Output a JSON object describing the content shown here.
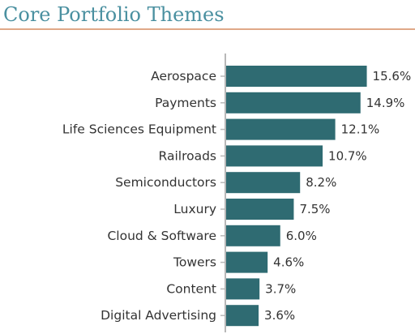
{
  "colors": {
    "title": "#4a90a0",
    "rule": "#e0a888",
    "bar": "#2f6b72",
    "axis": "#b8b8b8",
    "text": "#333333"
  },
  "chart_data": {
    "type": "bar",
    "orientation": "horizontal",
    "title": "Core Portfolio Themes",
    "categories": [
      "Aerospace",
      "Payments",
      "Life Sciences Equipment",
      "Railroads",
      "Semiconductors",
      "Luxury",
      "Cloud & Software",
      "Towers",
      "Content",
      "Digital Advertising"
    ],
    "values": [
      15.6,
      14.9,
      12.1,
      10.7,
      8.2,
      7.5,
      6.0,
      4.6,
      3.7,
      3.6
    ],
    "data_labels": [
      "15.6%",
      "14.9%",
      "12.1%",
      "10.7%",
      "8.2%",
      "7.5%",
      "6.0%",
      "4.6%",
      "3.7%",
      "3.6%"
    ],
    "xlim": [
      0,
      16
    ],
    "grid": false,
    "legend": "none"
  }
}
